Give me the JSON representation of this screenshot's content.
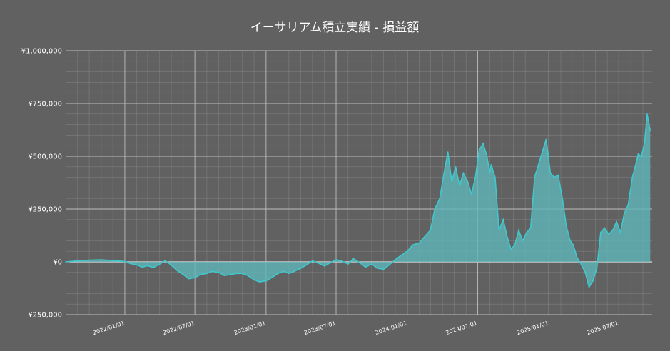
{
  "chart_data": {
    "type": "area",
    "title": "イーサリアム積立実績 - 損益額",
    "xlabel": "",
    "ylabel": "",
    "ylim": [
      -250000,
      1000000
    ],
    "xlim": [
      "2021-08-01",
      "2025-09-25"
    ],
    "grid": true,
    "y_ticks": [
      {
        "value": -250000,
        "label": "-¥250,000"
      },
      {
        "value": 0,
        "label": "¥0"
      },
      {
        "value": 250000,
        "label": "¥250,000"
      },
      {
        "value": 500000,
        "label": "¥500,000"
      },
      {
        "value": 750000,
        "label": "¥750,000"
      },
      {
        "value": 1000000,
        "label": "¥1,000,000"
      }
    ],
    "x_ticks": [
      {
        "date": "2022-01-01",
        "label": "2022/01/01"
      },
      {
        "date": "2022-07-01",
        "label": "2022/07/01"
      },
      {
        "date": "2023-01-01",
        "label": "2023/01/01"
      },
      {
        "date": "2023-07-01",
        "label": "2023/07/01"
      },
      {
        "date": "2024-01-01",
        "label": "2024/01/01"
      },
      {
        "date": "2024-07-01",
        "label": "2024/07/01"
      },
      {
        "date": "2025-01-01",
        "label": "2025/01/01"
      },
      {
        "date": "2025-07-01",
        "label": "2025/07/01"
      }
    ],
    "colors": {
      "line": "#3ec8cf",
      "fill": "#5fb7b9",
      "background": "#616161",
      "grid": "#8a8a8a",
      "zero_line": "#ffffff",
      "text": "#ffffff"
    },
    "series": [
      {
        "x": [
          "2021-08-01",
          "2021-09-01",
          "2021-10-01",
          "2021-11-01",
          "2021-12-01",
          "2022-01-01",
          "2022-01-15",
          "2022-02-01",
          "2022-02-15",
          "2022-03-01",
          "2022-03-15",
          "2022-04-01",
          "2022-04-15",
          "2022-05-01",
          "2022-05-15",
          "2022-06-01",
          "2022-06-15",
          "2022-07-01",
          "2022-07-15",
          "2022-08-01",
          "2022-08-15",
          "2022-09-01",
          "2022-09-15",
          "2022-10-01",
          "2022-10-15",
          "2022-11-01",
          "2022-11-15",
          "2022-12-01",
          "2022-12-15",
          "2023-01-01",
          "2023-01-15",
          "2023-02-01",
          "2023-02-15",
          "2023-03-01",
          "2023-03-15",
          "2023-04-01",
          "2023-04-15",
          "2023-05-01",
          "2023-05-15",
          "2023-06-01",
          "2023-06-15",
          "2023-07-01",
          "2023-07-15",
          "2023-08-01",
          "2023-08-15",
          "2023-09-01",
          "2023-09-15",
          "2023-10-01",
          "2023-10-15",
          "2023-11-01",
          "2023-11-15",
          "2023-12-01",
          "2023-12-15",
          "2024-01-01",
          "2024-01-15",
          "2024-02-01",
          "2024-02-15",
          "2024-03-01",
          "2024-03-12",
          "2024-03-25",
          "2024-04-05",
          "2024-04-15",
          "2024-04-25",
          "2024-05-05",
          "2024-05-15",
          "2024-05-25",
          "2024-06-05",
          "2024-06-15",
          "2024-06-25",
          "2024-07-05",
          "2024-07-15",
          "2024-07-25",
          "2024-08-01",
          "2024-08-05",
          "2024-08-15",
          "2024-08-25",
          "2024-09-05",
          "2024-09-15",
          "2024-09-25",
          "2024-10-05",
          "2024-10-15",
          "2024-10-25",
          "2024-11-05",
          "2024-11-15",
          "2024-11-25",
          "2024-12-05",
          "2024-12-15",
          "2024-12-25",
          "2025-01-05",
          "2025-01-15",
          "2025-01-25",
          "2025-02-05",
          "2025-02-15",
          "2025-02-25",
          "2025-03-05",
          "2025-03-15",
          "2025-03-25",
          "2025-04-05",
          "2025-04-15",
          "2025-04-25",
          "2025-05-05",
          "2025-05-15",
          "2025-05-25",
          "2025-06-05",
          "2025-06-15",
          "2025-06-25",
          "2025-07-05",
          "2025-07-15",
          "2025-07-25",
          "2025-08-05",
          "2025-08-12",
          "2025-08-20",
          "2025-08-28",
          "2025-09-05",
          "2025-09-12",
          "2025-09-20"
        ],
        "y": [
          0,
          5000,
          8000,
          10000,
          6000,
          2000,
          -8000,
          -15000,
          -25000,
          -18000,
          -28000,
          -10000,
          5000,
          -15000,
          -40000,
          -60000,
          -80000,
          -75000,
          -60000,
          -55000,
          -45000,
          -50000,
          -65000,
          -60000,
          -55000,
          -55000,
          -65000,
          -85000,
          -95000,
          -90000,
          -75000,
          -55000,
          -45000,
          -55000,
          -45000,
          -30000,
          -15000,
          5000,
          -5000,
          -20000,
          -5000,
          10000,
          5000,
          -10000,
          15000,
          -5000,
          -25000,
          -10000,
          -30000,
          -35000,
          -15000,
          10000,
          30000,
          50000,
          80000,
          90000,
          120000,
          150000,
          250000,
          300000,
          420000,
          520000,
          380000,
          450000,
          360000,
          420000,
          380000,
          320000,
          400000,
          530000,
          560000,
          500000,
          420000,
          460000,
          400000,
          150000,
          200000,
          120000,
          60000,
          80000,
          150000,
          100000,
          140000,
          160000,
          400000,
          460000,
          520000,
          580000,
          420000,
          400000,
          410000,
          300000,
          170000,
          100000,
          80000,
          20000,
          -10000,
          -50000,
          -120000,
          -90000,
          -30000,
          140000,
          160000,
          130000,
          150000,
          190000,
          140000,
          230000,
          270000,
          400000,
          450000,
          510000,
          500000,
          560000,
          700000,
          620000
        ]
      }
    ]
  }
}
